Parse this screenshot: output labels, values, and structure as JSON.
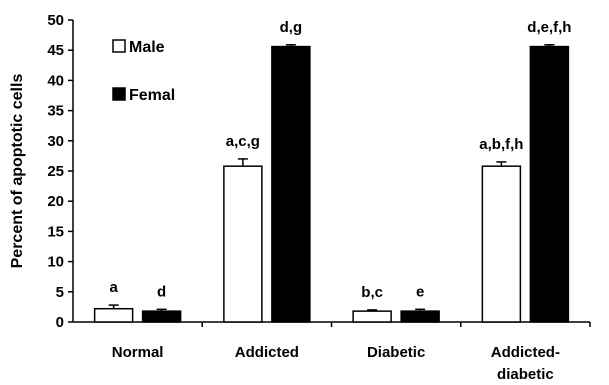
{
  "chart_data": {
    "type": "bar",
    "title": "",
    "xlabel": "",
    "ylabel": "Percent of apoptotic cells",
    "ylim": [
      0,
      50
    ],
    "yticks": [
      0,
      5,
      10,
      15,
      20,
      25,
      30,
      35,
      40,
      45,
      50
    ],
    "categories": [
      "Normal",
      "Addicted",
      "Diabetic",
      "Addicted-\ndiabetic"
    ],
    "series": [
      {
        "name": "Male",
        "color": "#ffffff",
        "values": [
          2.2,
          25.8,
          1.8,
          25.8
        ],
        "errors": [
          0.6,
          1.2,
          0.2,
          0.7
        ],
        "labels": [
          "a",
          "a,c,g",
          "b,c",
          "a,b,f,h"
        ]
      },
      {
        "name": "Femal",
        "color": "#000000",
        "values": [
          1.8,
          45.6,
          1.8,
          45.6
        ],
        "errors": [
          0.3,
          0.3,
          0.3,
          0.3
        ],
        "labels": [
          "d",
          "d,g",
          "e",
          "d,e,f,h"
        ]
      }
    ],
    "legend": "top-left",
    "grid": false
  }
}
